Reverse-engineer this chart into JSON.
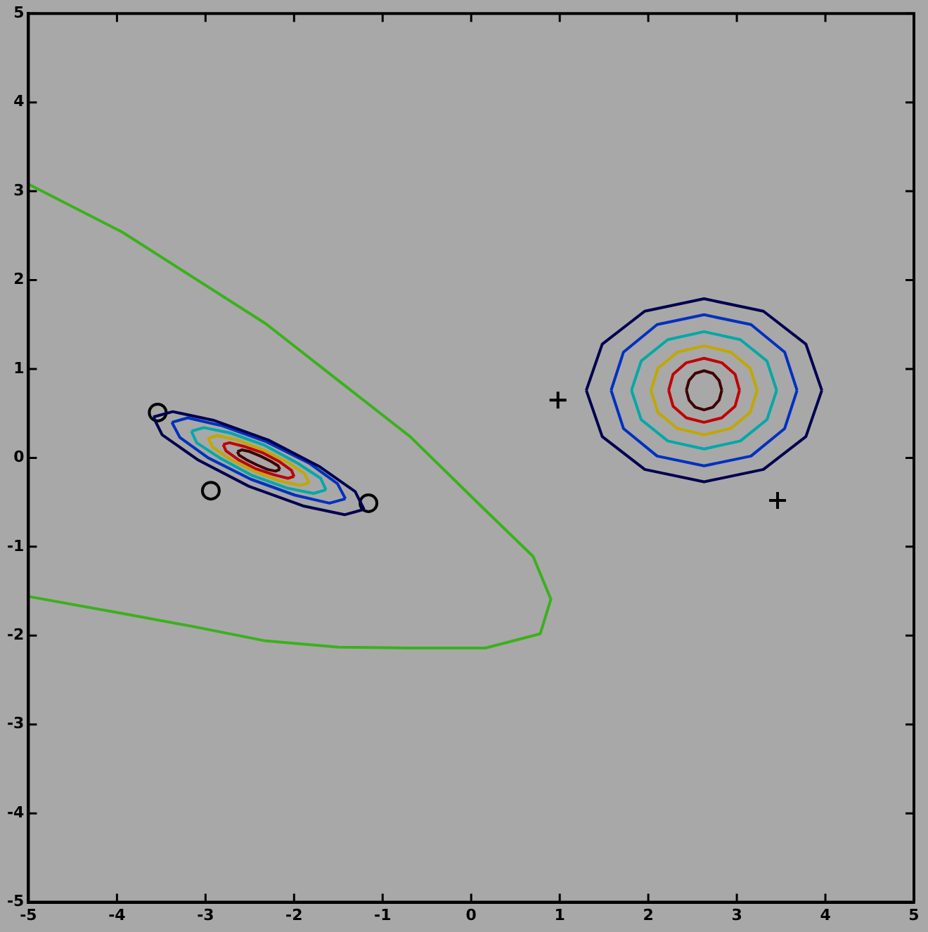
{
  "chart_data": {
    "type": "line",
    "xlim": [
      -5,
      5
    ],
    "ylim": [
      -5,
      5
    ],
    "xticks": [
      -5,
      -4,
      -3,
      -2,
      -1,
      0,
      1,
      2,
      3,
      4,
      5
    ],
    "yticks": [
      -5,
      -4,
      -3,
      -2,
      -1,
      0,
      1,
      2,
      3,
      4,
      5
    ],
    "grid": false,
    "legend": false,
    "series": [
      {
        "type": "line",
        "color": "#3cb01e",
        "marker": "none",
        "x": [
          -5,
          -3.94,
          -2.32,
          -1.5,
          -0.69,
          0.13,
          0.7,
          0.9,
          0.78,
          0.16,
          -0.69,
          -1.5,
          -2.32,
          -3.13,
          -3.94,
          -5
        ],
        "values": [
          3.08,
          2.54,
          1.51,
          0.87,
          0.24,
          -0.56,
          -1.11,
          -1.59,
          -1.98,
          -2.14,
          -2.14,
          -2.13,
          -2.06,
          -1.9,
          -1.75,
          -1.56
        ]
      },
      {
        "type": "line",
        "color": "#000050",
        "marker": "none",
        "x": [
          3.96,
          3.78,
          3.3,
          2.63,
          1.96,
          1.48,
          1.3
        ],
        "values": [
          0.76,
          1.28,
          1.65,
          1.79,
          1.65,
          1.28,
          0.76
        ]
      },
      {
        "type": "line",
        "color": "#000050",
        "marker": "none",
        "x": [
          1.3,
          1.48,
          1.96,
          2.63,
          3.3,
          3.78,
          3.96
        ],
        "values": [
          0.76,
          0.24,
          -0.13,
          -0.27,
          -0.13,
          0.24,
          0.76
        ]
      },
      {
        "type": "line",
        "color": "#0030c0",
        "marker": "none",
        "x": [
          3.68,
          3.54,
          3.16,
          2.63,
          2.1,
          1.72,
          1.58
        ],
        "values": [
          0.76,
          1.19,
          1.5,
          1.61,
          1.5,
          1.19,
          0.76
        ]
      },
      {
        "type": "line",
        "color": "#0030c0",
        "marker": "none",
        "x": [
          1.58,
          1.72,
          2.1,
          2.63,
          3.16,
          3.54,
          3.68
        ],
        "values": [
          0.76,
          0.33,
          0.02,
          -0.09,
          0.02,
          0.33,
          0.76
        ]
      },
      {
        "type": "line",
        "color": "#00a8a8",
        "marker": "none",
        "x": [
          3.45,
          3.34,
          3.04,
          2.63,
          2.22,
          1.92,
          1.81
        ],
        "values": [
          0.76,
          1.09,
          1.33,
          1.42,
          1.33,
          1.09,
          0.76
        ]
      },
      {
        "type": "line",
        "color": "#00a8a8",
        "marker": "none",
        "x": [
          1.81,
          1.92,
          2.22,
          2.63,
          3.04,
          3.34,
          3.45
        ],
        "values": [
          0.76,
          0.43,
          0.19,
          0.1,
          0.19,
          0.43,
          0.76
        ]
      },
      {
        "type": "line",
        "color": "#c0a800",
        "marker": "none",
        "x": [
          3.23,
          3.15,
          2.93,
          2.63,
          2.33,
          2.11,
          2.03
        ],
        "values": [
          0.76,
          1.01,
          1.19,
          1.26,
          1.19,
          1.01,
          0.76
        ]
      },
      {
        "type": "line",
        "color": "#c0a800",
        "marker": "none",
        "x": [
          2.03,
          2.11,
          2.33,
          2.63,
          2.93,
          3.15,
          3.23
        ],
        "values": [
          0.76,
          0.51,
          0.33,
          0.26,
          0.33,
          0.51,
          0.76
        ]
      },
      {
        "type": "line",
        "color": "#c00000",
        "marker": "none",
        "x": [
          3.03,
          2.98,
          2.83,
          2.63,
          2.43,
          2.28,
          2.23
        ],
        "values": [
          0.76,
          0.94,
          1.07,
          1.12,
          1.07,
          0.94,
          0.76
        ]
      },
      {
        "type": "line",
        "color": "#c00000",
        "marker": "none",
        "x": [
          2.23,
          2.28,
          2.43,
          2.63,
          2.83,
          2.98,
          3.03
        ],
        "values": [
          0.76,
          0.58,
          0.45,
          0.4,
          0.45,
          0.58,
          0.76
        ]
      },
      {
        "type": "line",
        "color": "#400000",
        "marker": "none",
        "x": [
          2.83,
          2.8,
          2.73,
          2.63,
          2.53,
          2.46,
          2.43
        ],
        "values": [
          0.76,
          0.87,
          0.95,
          0.98,
          0.95,
          0.87,
          0.76
        ]
      },
      {
        "type": "line",
        "color": "#400000",
        "marker": "none",
        "x": [
          2.43,
          2.46,
          2.53,
          2.63,
          2.73,
          2.8,
          2.83
        ],
        "values": [
          0.76,
          0.65,
          0.57,
          0.54,
          0.57,
          0.65,
          0.76
        ]
      },
      {
        "type": "line",
        "color": "#000050",
        "marker": "none",
        "x": [
          -1.21,
          -1.31,
          -1.71,
          -2.29,
          -2.9,
          -3.37,
          -3.59
        ],
        "values": [
          -0.58,
          -0.38,
          -0.1,
          0.2,
          0.42,
          0.52,
          0.46
        ]
      },
      {
        "type": "line",
        "color": "#000050",
        "marker": "none",
        "x": [
          -3.59,
          -3.49,
          -3.09,
          -2.51,
          -1.9,
          -1.43,
          -1.21
        ],
        "values": [
          0.46,
          0.26,
          -0.02,
          -0.32,
          -0.54,
          -0.64,
          -0.58
        ]
      },
      {
        "type": "line",
        "color": "#0030c0",
        "marker": "none",
        "x": [
          -1.42,
          -1.51,
          -1.83,
          -2.31,
          -2.81,
          -3.2,
          -3.38
        ],
        "values": [
          -0.46,
          -0.29,
          -0.06,
          0.18,
          0.36,
          0.45,
          0.4
        ]
      },
      {
        "type": "line",
        "color": "#0030c0",
        "marker": "none",
        "x": [
          -3.38,
          -3.29,
          -2.97,
          -2.49,
          -1.99,
          -1.6,
          -1.42
        ],
        "values": [
          0.4,
          0.23,
          0.0,
          -0.24,
          -0.42,
          -0.51,
          -0.46
        ]
      },
      {
        "type": "line",
        "color": "#00a8a8",
        "marker": "none",
        "x": [
          -1.64,
          -1.7,
          -1.96,
          -2.33,
          -2.72,
          -3.02,
          -3.16
        ],
        "values": [
          -0.36,
          -0.23,
          -0.06,
          0.14,
          0.28,
          0.34,
          0.3
        ]
      },
      {
        "type": "line",
        "color": "#00a8a8",
        "marker": "none",
        "x": [
          -3.16,
          -3.1,
          -2.84,
          -2.47,
          -2.08,
          -1.78,
          -1.64
        ],
        "values": [
          0.3,
          0.17,
          0.0,
          -0.2,
          -0.34,
          -0.4,
          -0.36
        ]
      },
      {
        "type": "line",
        "color": "#c0a800",
        "marker": "none",
        "x": [
          -1.83,
          -1.88,
          -2.07,
          -2.35,
          -2.64,
          -2.87,
          -2.97
        ],
        "values": [
          -0.28,
          -0.18,
          -0.05,
          0.09,
          0.2,
          0.25,
          0.22
        ]
      },
      {
        "type": "line",
        "color": "#c0a800",
        "marker": "none",
        "x": [
          -2.97,
          -2.92,
          -2.73,
          -2.45,
          -2.16,
          -1.93,
          -1.83
        ],
        "values": [
          0.22,
          0.12,
          -0.01,
          -0.15,
          -0.26,
          -0.31,
          -0.28
        ]
      },
      {
        "type": "line",
        "color": "#c00000",
        "marker": "none",
        "x": [
          -2.0,
          -2.03,
          -2.17,
          -2.36,
          -2.57,
          -2.73,
          -2.8
        ],
        "values": [
          -0.21,
          -0.14,
          -0.04,
          0.06,
          0.13,
          0.17,
          0.15
        ]
      },
      {
        "type": "line",
        "color": "#c00000",
        "marker": "none",
        "x": [
          -2.8,
          -2.77,
          -2.63,
          -2.44,
          -2.23,
          -2.07,
          -2.0
        ],
        "values": [
          0.15,
          0.08,
          -0.02,
          -0.12,
          -0.19,
          -0.23,
          -0.21
        ]
      },
      {
        "type": "line",
        "color": "#400000",
        "marker": "none",
        "x": [
          -2.16,
          -2.18,
          -2.26,
          -2.38,
          -2.5,
          -2.59,
          -2.64
        ],
        "values": [
          -0.13,
          -0.09,
          -0.04,
          0.02,
          0.07,
          0.09,
          0.07
        ]
      },
      {
        "type": "line",
        "color": "#400000",
        "marker": "none",
        "x": [
          -2.64,
          -2.62,
          -2.54,
          -2.42,
          -2.3,
          -2.21,
          -2.16
        ],
        "values": [
          0.07,
          0.03,
          -0.02,
          -0.08,
          -0.13,
          -0.15,
          -0.13
        ]
      },
      {
        "type": "scatter",
        "color": "#000000",
        "marker": "circle",
        "x": [
          -3.54,
          -2.94,
          -1.16
        ],
        "values": [
          0.51,
          -0.37,
          -0.51
        ]
      },
      {
        "type": "scatter",
        "color": "#000000",
        "marker": "cross",
        "x": [
          0.98,
          3.46
        ],
        "values": [
          0.65,
          -0.48
        ]
      }
    ]
  }
}
